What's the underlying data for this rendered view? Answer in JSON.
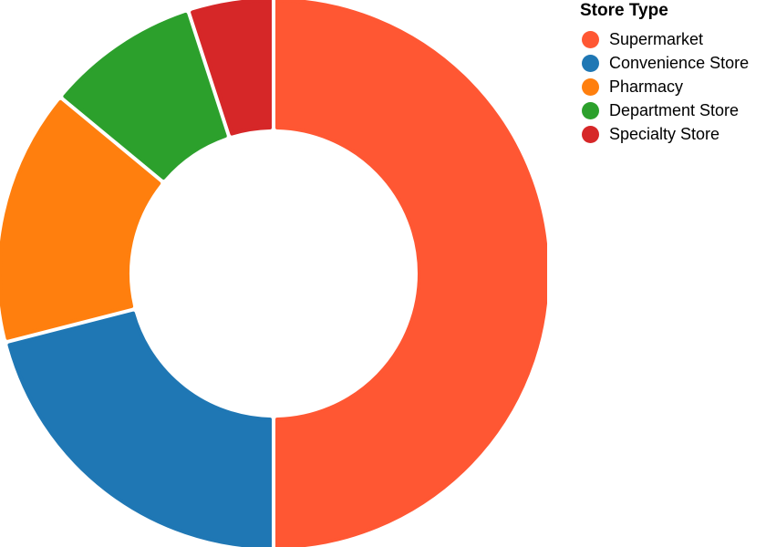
{
  "chart_data": {
    "type": "pie",
    "donut": true,
    "categories": [
      "Supermarket",
      "Convenience Store",
      "Pharmacy",
      "Department Store",
      "Specialty Store"
    ],
    "values": [
      50,
      21,
      15,
      9,
      5
    ],
    "colors": [
      "#ff5733",
      "#1f77b4",
      "#ff7f0e",
      "#2ca02c",
      "#d62728"
    ],
    "legend_title": "Store Type",
    "legend_position": "top-right"
  }
}
